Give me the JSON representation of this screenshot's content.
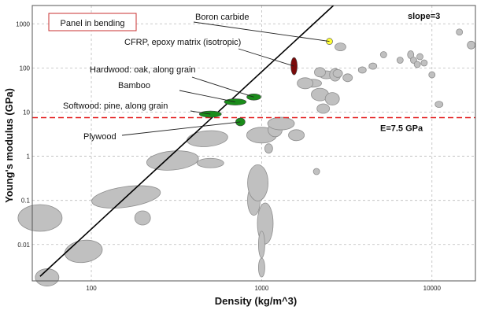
{
  "chart_data": {
    "type": "scatter",
    "title": "",
    "xlabel": "Density (kg/m^3)",
    "ylabel": "Young's modulus (GPa)",
    "xscale": "log",
    "yscale": "log",
    "xlim": [
      45,
      18000
    ],
    "ylim": [
      0.0015,
      2600
    ],
    "grid": true,
    "x_ticks": [
      {
        "value": 100,
        "label": "100"
      },
      {
        "value": 1000,
        "label": "1000"
      },
      {
        "value": 10000,
        "label": "10000"
      }
    ],
    "y_ticks": [
      {
        "value": 0.01,
        "label": "0.01"
      },
      {
        "value": 0.1,
        "label": "0.1"
      },
      {
        "value": 1,
        "label": "1"
      },
      {
        "value": 10,
        "label": "10"
      },
      {
        "value": 100,
        "label": "100"
      },
      {
        "value": 1000,
        "label": "1000"
      }
    ],
    "panel_label": "Panel in bending",
    "guide_line": {
      "label": "slope=3",
      "slope": 3,
      "through": [
        {
          "x": 50,
          "y": 0.0019
        },
        {
          "x": 2640,
          "y": 2600
        }
      ],
      "color": "#000000"
    },
    "reference_line": {
      "label": "E=7.5 GPa",
      "y": 7.5,
      "color": "#e31a1c"
    },
    "highlighted": [
      {
        "label": "Boron carbide",
        "x": 2500,
        "y": 400,
        "color": "#ffff33"
      },
      {
        "label": "CFRP, epoxy matrix (isotropic)",
        "x": 1550,
        "y": 110,
        "color": "#7a0a0a"
      },
      {
        "label": "Hardwood: oak, along grain",
        "x": 900,
        "y": 22,
        "color": "#1a8c1a"
      },
      {
        "label": "Bamboo",
        "x": 700,
        "y": 17,
        "color": "#1a8c1a"
      },
      {
        "label": "Softwood: pine, along grain",
        "x": 500,
        "y": 9,
        "color": "#1a8c1a"
      },
      {
        "label": "Plywood",
        "x": 750,
        "y": 6,
        "color": "#1a8c1a"
      }
    ],
    "background_materials": [
      {
        "x": 50,
        "y": 0.04
      },
      {
        "x": 90,
        "y": 0.007
      },
      {
        "x": 160,
        "y": 0.12
      },
      {
        "x": 200,
        "y": 0.04
      },
      {
        "x": 55,
        "y": 0.0018
      },
      {
        "x": 300,
        "y": 0.8
      },
      {
        "x": 480,
        "y": 2.5
      },
      {
        "x": 500,
        "y": 0.7
      },
      {
        "x": 900,
        "y": 0.1
      },
      {
        "x": 950,
        "y": 0.25
      },
      {
        "x": 1000,
        "y": 3
      },
      {
        "x": 1200,
        "y": 4
      },
      {
        "x": 1300,
        "y": 5.5
      },
      {
        "x": 1050,
        "y": 0.03
      },
      {
        "x": 1000,
        "y": 0.01
      },
      {
        "x": 1000,
        "y": 0.003
      },
      {
        "x": 1100,
        "y": 1.5
      },
      {
        "x": 1600,
        "y": 3
      },
      {
        "x": 2000,
        "y": 45
      },
      {
        "x": 2200,
        "y": 25
      },
      {
        "x": 2300,
        "y": 12
      },
      {
        "x": 2400,
        "y": 70
      },
      {
        "x": 2600,
        "y": 20
      },
      {
        "x": 2900,
        "y": 300
      },
      {
        "x": 2700,
        "y": 70
      },
      {
        "x": 2800,
        "y": 75
      },
      {
        "x": 3200,
        "y": 60
      },
      {
        "x": 3900,
        "y": 90
      },
      {
        "x": 4500,
        "y": 110
      },
      {
        "x": 5200,
        "y": 200
      },
      {
        "x": 6500,
        "y": 150
      },
      {
        "x": 7500,
        "y": 200
      },
      {
        "x": 8500,
        "y": 180
      },
      {
        "x": 7800,
        "y": 150
      },
      {
        "x": 8200,
        "y": 120
      },
      {
        "x": 9000,
        "y": 130
      },
      {
        "x": 10000,
        "y": 70
      },
      {
        "x": 11000,
        "y": 15
      },
      {
        "x": 14500,
        "y": 650
      },
      {
        "x": 17000,
        "y": 330
      },
      {
        "x": 2100,
        "y": 0.45
      },
      {
        "x": 2200,
        "y": 80
      },
      {
        "x": 1800,
        "y": 45
      }
    ]
  },
  "colors": {
    "background_points": "#c0c0c0",
    "outline": "#8e8e8e",
    "grid": "#bbbbbb"
  }
}
